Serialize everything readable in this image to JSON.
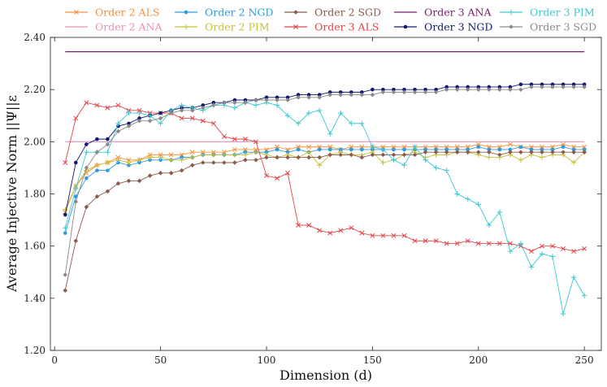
{
  "chart_data": {
    "type": "line",
    "title": "",
    "xlabel": "Dimension (d)",
    "ylabel": "Average Injective Norm ||Ψ||ε",
    "xlim": [
      -2,
      258
    ],
    "ylim": [
      1.2,
      2.4
    ],
    "xticks": [
      0,
      50,
      100,
      150,
      200,
      250
    ],
    "yticks": [
      1.2,
      1.4,
      1.6,
      1.8,
      2.0,
      2.2,
      2.4
    ],
    "ytick_labels": [
      "1.20",
      "1.40",
      "1.60",
      "1.80",
      "2.00",
      "2.20",
      "2.40"
    ],
    "x": [
      5,
      10,
      15,
      20,
      25,
      30,
      35,
      40,
      45,
      50,
      55,
      60,
      65,
      70,
      75,
      80,
      85,
      90,
      95,
      100,
      105,
      110,
      115,
      120,
      125,
      130,
      135,
      140,
      145,
      150,
      155,
      160,
      165,
      170,
      175,
      180,
      185,
      190,
      195,
      200,
      205,
      210,
      215,
      220,
      225,
      230,
      235,
      240,
      245,
      250
    ],
    "legend_position": "top",
    "series": [
      {
        "name": "Order 2 ALS",
        "color": "#f5923e",
        "marker": "x",
        "values": [
          1.73,
          1.83,
          1.88,
          1.91,
          1.92,
          1.94,
          1.93,
          1.93,
          1.95,
          1.95,
          1.95,
          1.95,
          1.96,
          1.96,
          1.96,
          1.96,
          1.97,
          1.97,
          1.97,
          1.97,
          1.98,
          1.97,
          1.98,
          1.98,
          1.98,
          1.98,
          1.97,
          1.98,
          1.98,
          1.98,
          1.98,
          1.98,
          1.98,
          1.98,
          1.98,
          1.98,
          1.98,
          1.98,
          1.98,
          1.99,
          1.98,
          1.98,
          1.99,
          1.98,
          1.98,
          1.98,
          1.98,
          1.99,
          1.98,
          1.98
        ]
      },
      {
        "name": "Order 2 ANA",
        "color": "#e690b8",
        "marker": "none",
        "values": [
          2.0,
          2.0,
          2.0,
          2.0,
          2.0,
          2.0,
          2.0,
          2.0,
          2.0,
          2.0,
          2.0,
          2.0,
          2.0,
          2.0,
          2.0,
          2.0,
          2.0,
          2.0,
          2.0,
          2.0,
          2.0,
          2.0,
          2.0,
          2.0,
          2.0,
          2.0,
          2.0,
          2.0,
          2.0,
          2.0,
          2.0,
          2.0,
          2.0,
          2.0,
          2.0,
          2.0,
          2.0,
          2.0,
          2.0,
          2.0,
          2.0,
          2.0,
          2.0,
          2.0,
          2.0,
          2.0,
          2.0,
          2.0,
          2.0,
          2.0
        ]
      },
      {
        "name": "Order 2 NGD",
        "color": "#2e9be0",
        "marker": "dot",
        "values": [
          1.65,
          1.79,
          1.86,
          1.89,
          1.89,
          1.92,
          1.91,
          1.92,
          1.93,
          1.93,
          1.93,
          1.94,
          1.94,
          1.95,
          1.95,
          1.95,
          1.95,
          1.96,
          1.96,
          1.96,
          1.97,
          1.96,
          1.97,
          1.96,
          1.97,
          1.97,
          1.97,
          1.97,
          1.97,
          1.97,
          1.97,
          1.97,
          1.97,
          1.97,
          1.97,
          1.97,
          1.97,
          1.97,
          1.97,
          1.98,
          1.97,
          1.97,
          1.97,
          1.98,
          1.97,
          1.97,
          1.97,
          1.98,
          1.97,
          1.97
        ]
      },
      {
        "name": "Order 2 PIM",
        "color": "#c8c038",
        "marker": "plus",
        "values": [
          1.74,
          1.83,
          1.89,
          1.91,
          1.92,
          1.93,
          1.92,
          1.93,
          1.94,
          1.94,
          1.93,
          1.93,
          1.94,
          1.95,
          1.95,
          1.95,
          1.95,
          1.95,
          1.96,
          1.95,
          1.94,
          1.95,
          1.94,
          1.96,
          1.91,
          1.95,
          1.96,
          1.95,
          1.95,
          1.96,
          1.92,
          1.93,
          1.95,
          1.96,
          1.94,
          1.95,
          1.95,
          1.96,
          1.96,
          1.95,
          1.94,
          1.94,
          1.95,
          1.93,
          1.95,
          1.94,
          1.95,
          1.95,
          1.92,
          1.96
        ]
      },
      {
        "name": "Order 2 SGD",
        "color": "#8b5a4a",
        "marker": "diamond",
        "values": [
          1.43,
          1.62,
          1.75,
          1.79,
          1.81,
          1.84,
          1.85,
          1.85,
          1.87,
          1.88,
          1.88,
          1.89,
          1.91,
          1.92,
          1.92,
          1.92,
          1.92,
          1.93,
          1.93,
          1.94,
          1.94,
          1.94,
          1.94,
          1.94,
          1.94,
          1.95,
          1.95,
          1.95,
          1.94,
          1.95,
          1.95,
          1.95,
          1.95,
          1.95,
          1.96,
          1.96,
          1.96,
          1.96,
          1.96,
          1.96,
          1.96,
          1.95,
          1.96,
          1.96,
          1.96,
          1.96,
          1.96,
          1.96,
          1.96,
          1.96
        ]
      },
      {
        "name": "Order 3 ALS",
        "color": "#e04448",
        "marker": "x",
        "values": [
          1.92,
          2.09,
          2.15,
          2.14,
          2.13,
          2.14,
          2.12,
          2.12,
          2.11,
          2.11,
          2.11,
          2.09,
          2.09,
          2.08,
          2.07,
          2.02,
          2.01,
          2.01,
          2.0,
          1.87,
          1.86,
          1.88,
          1.68,
          1.68,
          1.66,
          1.65,
          1.66,
          1.67,
          1.65,
          1.64,
          1.64,
          1.64,
          1.64,
          1.62,
          1.62,
          1.62,
          1.61,
          1.61,
          1.62,
          1.61,
          1.61,
          1.61,
          1.61,
          1.6,
          1.58,
          1.6,
          1.6,
          1.59,
          1.58,
          1.59
        ]
      },
      {
        "name": "Order 3 ANA",
        "color": "#7b1f6e",
        "marker": "none",
        "values": [
          2.345,
          2.345,
          2.345,
          2.345,
          2.345,
          2.345,
          2.345,
          2.345,
          2.345,
          2.345,
          2.345,
          2.345,
          2.345,
          2.345,
          2.345,
          2.345,
          2.345,
          2.345,
          2.345,
          2.345,
          2.345,
          2.345,
          2.345,
          2.345,
          2.345,
          2.345,
          2.345,
          2.345,
          2.345,
          2.345,
          2.345,
          2.345,
          2.345,
          2.345,
          2.345,
          2.345,
          2.345,
          2.345,
          2.345,
          2.345,
          2.345,
          2.345,
          2.345,
          2.345,
          2.345,
          2.345,
          2.345,
          2.345,
          2.345,
          2.345
        ]
      },
      {
        "name": "Order 3 NGD",
        "color": "#101a6e",
        "marker": "dot",
        "values": [
          1.72,
          1.92,
          1.99,
          2.01,
          2.01,
          2.06,
          2.07,
          2.09,
          2.1,
          2.11,
          2.12,
          2.13,
          2.13,
          2.14,
          2.15,
          2.15,
          2.16,
          2.16,
          2.16,
          2.17,
          2.17,
          2.17,
          2.18,
          2.18,
          2.18,
          2.19,
          2.19,
          2.19,
          2.19,
          2.2,
          2.2,
          2.2,
          2.2,
          2.2,
          2.2,
          2.2,
          2.21,
          2.21,
          2.21,
          2.21,
          2.21,
          2.21,
          2.21,
          2.22,
          2.22,
          2.22,
          2.22,
          2.22,
          2.22,
          2.22
        ]
      },
      {
        "name": "Order 3 PIM",
        "color": "#3cc8d4",
        "marker": "plus",
        "values": [
          1.67,
          1.82,
          1.96,
          1.96,
          1.96,
          2.07,
          2.11,
          2.11,
          2.1,
          2.07,
          2.12,
          2.14,
          2.13,
          2.12,
          2.14,
          2.14,
          2.13,
          2.15,
          2.14,
          2.15,
          2.14,
          2.1,
          2.07,
          2.11,
          2.12,
          2.03,
          2.11,
          2.07,
          2.07,
          1.98,
          1.97,
          1.93,
          1.91,
          1.98,
          1.93,
          1.9,
          1.89,
          1.8,
          1.78,
          1.76,
          1.68,
          1.73,
          1.58,
          1.61,
          1.52,
          1.57,
          1.56,
          1.34,
          1.48,
          1.41
        ]
      },
      {
        "name": "Order 3 SGD",
        "color": "#8a8a8a",
        "marker": "diamond",
        "values": [
          1.49,
          1.77,
          1.9,
          1.96,
          1.99,
          2.04,
          2.06,
          2.08,
          2.08,
          2.09,
          2.11,
          2.12,
          2.12,
          2.13,
          2.14,
          2.15,
          2.15,
          2.15,
          2.16,
          2.16,
          2.16,
          2.16,
          2.17,
          2.17,
          2.17,
          2.18,
          2.18,
          2.18,
          2.18,
          2.18,
          2.19,
          2.19,
          2.19,
          2.19,
          2.19,
          2.19,
          2.2,
          2.2,
          2.2,
          2.2,
          2.2,
          2.2,
          2.2,
          2.2,
          2.21,
          2.21,
          2.21,
          2.21,
          2.21,
          2.21
        ]
      }
    ]
  }
}
